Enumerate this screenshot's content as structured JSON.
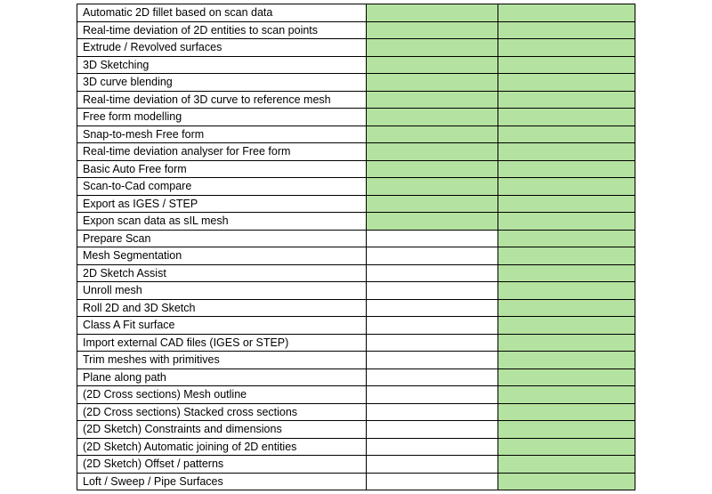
{
  "table": {
    "rows": [
      {
        "feature": "Automatic 2D fillet based on scan data",
        "fills": [
          "#b4e2a0",
          "#b4e2a0"
        ]
      },
      {
        "feature": "Real-time deviation of 2D entities to scan points",
        "fills": [
          "#b4e2a0",
          "#b4e2a0"
        ]
      },
      {
        "feature": "Extrude / Revolved surfaces",
        "fills": [
          "#b4e2a0",
          "#b4e2a0"
        ]
      },
      {
        "feature": "3D Sketching",
        "fills": [
          "#b4e2a0",
          "#b4e2a0"
        ]
      },
      {
        "feature": "3D curve blending",
        "fills": [
          "#b4e2a0",
          "#b4e2a0"
        ]
      },
      {
        "feature": "Real-time deviation of 3D curve to reference mesh",
        "fills": [
          "#b4e2a0",
          "#b4e2a0"
        ]
      },
      {
        "feature": "Free form modelling",
        "fills": [
          "#b4e2a0",
          "#b4e2a0"
        ]
      },
      {
        "feature": "Snap-to-mesh Free form",
        "fills": [
          "#b4e2a0",
          "#b4e2a0"
        ]
      },
      {
        "feature": "Real-time deviation analyser for Free form",
        "fills": [
          "#b4e2a0",
          "#b4e2a0"
        ]
      },
      {
        "feature": "Basic Auto Free form",
        "fills": [
          "#b4e2a0",
          "#b4e2a0"
        ]
      },
      {
        "feature": "Scan-to-Cad compare",
        "fills": [
          "#b4e2a0",
          "#b4e2a0"
        ]
      },
      {
        "feature": "Export as IGES / STEP",
        "fills": [
          "#b4e2a0",
          "#b4e2a0"
        ]
      },
      {
        "feature": "Expon scan data as sIL mesh",
        "fills": [
          "#b4e2a0",
          "#b4e2a0"
        ]
      },
      {
        "feature": "Prepare Scan",
        "fills": [
          null,
          "#b4e2a0"
        ]
      },
      {
        "feature": "Mesh Segmentation",
        "fills": [
          null,
          "#b4e2a0"
        ]
      },
      {
        "feature": "2D Sketch Assist",
        "fills": [
          null,
          "#b4e2a0"
        ]
      },
      {
        "feature": "Unroll mesh",
        "fills": [
          null,
          "#b4e2a0"
        ]
      },
      {
        "feature": "Roll 2D and 3D Sketch",
        "fills": [
          null,
          "#b4e2a0"
        ]
      },
      {
        "feature": "Class A Fit surface",
        "fills": [
          null,
          "#b4e2a0"
        ]
      },
      {
        "feature": "Import external CAD files (IGES or STEP)",
        "fills": [
          null,
          "#b4e2a0"
        ]
      },
      {
        "feature": "Trim meshes with primitives",
        "fills": [
          null,
          "#b4e2a0"
        ]
      },
      {
        "feature": "Plane along path",
        "fills": [
          null,
          "#b4e2a0"
        ]
      },
      {
        "feature": "(2D Cross sections) Mesh outline",
        "fills": [
          null,
          "#b4e2a0"
        ]
      },
      {
        "feature": "(2D Cross sections) Stacked cross sections",
        "fills": [
          null,
          "#b4e2a0"
        ]
      },
      {
        "feature": "(2D Sketch) Constraints and dimensions",
        "fills": [
          null,
          "#b4e2a0"
        ]
      },
      {
        "feature": "(2D Sketch) Automatic joining of 2D entities",
        "fills": [
          null,
          "#b4e2a0"
        ]
      },
      {
        "feature": "(2D Sketch) Offset / patterns",
        "fills": [
          null,
          "#b4e2a0"
        ]
      },
      {
        "feature": "Loft / Sweep / Pipe Surfaces",
        "fills": [
          null,
          "#b4e2a0"
        ]
      }
    ]
  }
}
